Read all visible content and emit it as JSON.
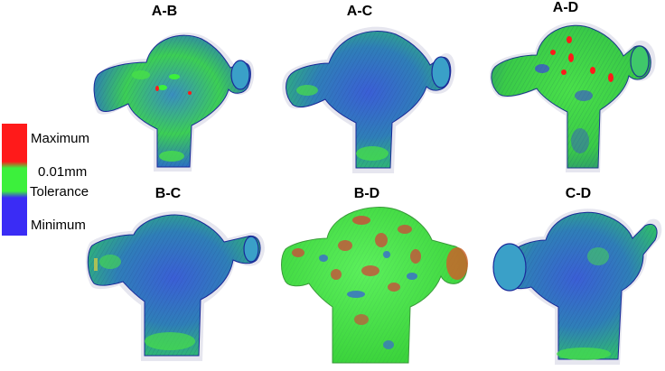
{
  "legend": {
    "items": [
      {
        "label": "Maximum",
        "color": "#ff1a1a"
      },
      {
        "label": "0.01mm",
        "color": "#3cf03c"
      },
      {
        "label": "Tolerance",
        "color": "#3cf03c"
      },
      {
        "label": "Minimum",
        "color": "#3a2cf5"
      }
    ]
  },
  "panels": [
    {
      "title": "A-B",
      "surface": "mostly-green-blue"
    },
    {
      "title": "A-C",
      "surface": "mostly-blue"
    },
    {
      "title": "A-D",
      "surface": "green-with-red-spots"
    },
    {
      "title": "B-C",
      "surface": "mostly-blue"
    },
    {
      "title": "B-D",
      "surface": "green-red-mottled"
    },
    {
      "title": "C-D",
      "surface": "mostly-blue"
    }
  ],
  "colors": {
    "maximum": "#ff1a1a",
    "tolerance": "#3cf03c",
    "minimum": "#3a2cf5",
    "outline": "#c8c8dc"
  }
}
